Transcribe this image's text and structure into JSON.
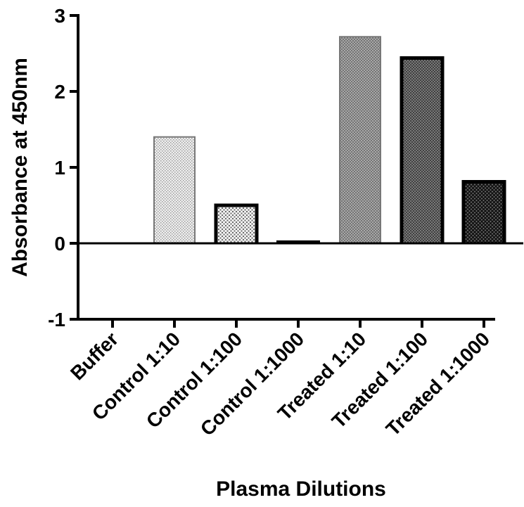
{
  "chart_data": {
    "type": "bar",
    "title": "",
    "xlabel": "Plasma Dilutions",
    "ylabel": "Absorbance at 450nm",
    "categories": [
      "Buffer",
      "Control 1:10",
      "Control 1:100",
      "Control 1:1000",
      "Treated 1:10",
      "Treated 1:100",
      "Treated 1:1000"
    ],
    "values": [
      0,
      1.4,
      0.5,
      0.02,
      2.72,
      2.44,
      0.81
    ],
    "ylim": [
      -1,
      3
    ],
    "yticks": [
      -1,
      0,
      1,
      2,
      3
    ],
    "grid": false,
    "legend": "none",
    "fills": [
      "none",
      "dots-light",
      "dots-medium",
      "dots-dark",
      "crosshatch-medium",
      "crosshatch-dark",
      "crosshatch-darkest"
    ]
  }
}
